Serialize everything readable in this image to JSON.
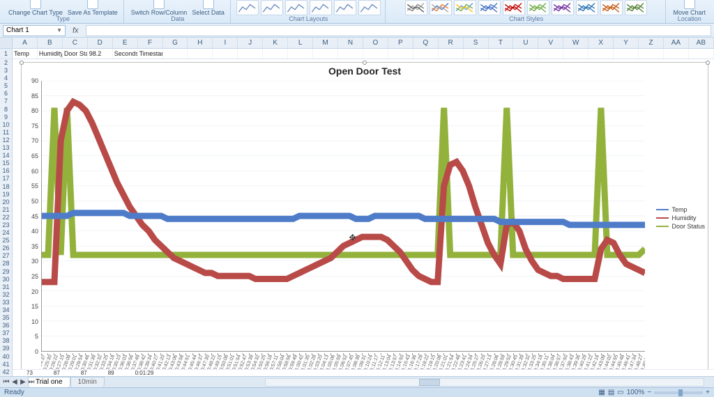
{
  "ribbon": {
    "groups": {
      "type": {
        "label": "Type",
        "btns": [
          "Change Chart Type",
          "Save As Template"
        ]
      },
      "data": {
        "label": "Data",
        "btns": [
          "Switch Row/Column",
          "Select Data"
        ]
      },
      "layouts": {
        "label": "Chart Layouts"
      },
      "styles": {
        "label": "Chart Styles"
      },
      "location": {
        "label": "Location",
        "btns": [
          "Move Chart"
        ]
      }
    },
    "style_colors": [
      [
        "#a5a5a5",
        "#7f7f7f",
        "#595959"
      ],
      [
        "#4472c4",
        "#ed7d31",
        "#a5a5a5"
      ],
      [
        "#5b9bd5",
        "#70ad47",
        "#ffc000"
      ],
      [
        "#4472c4",
        "#4472c4",
        "#4472c4"
      ],
      [
        "#c00000",
        "#c00000",
        "#c00000"
      ],
      [
        "#70ad47",
        "#70ad47",
        "#70ad47"
      ],
      [
        "#7030a0",
        "#7030a0",
        "#7030a0"
      ],
      [
        "#2e75b6",
        "#2e75b6",
        "#2e75b6"
      ],
      [
        "#c55a11",
        "#c55a11",
        "#c55a11"
      ],
      [
        "#548235",
        "#548235",
        "#548235"
      ]
    ],
    "layout_count": 6
  },
  "namebox": "Chart 1",
  "columns": [
    "A",
    "B",
    "C",
    "D",
    "E",
    "F",
    "G",
    "H",
    "I",
    "J",
    "K",
    "L",
    "M",
    "N",
    "O",
    "P",
    "Q",
    "R",
    "S",
    "T",
    "U",
    "V",
    "W",
    "X",
    "Y",
    "Z",
    "AA",
    "AB"
  ],
  "row1_cells": [
    "Temp",
    "Humidity",
    "Door Statu",
    "98.2",
    "Seconds",
    "Timestamp",
    "",
    "",
    "",
    "",
    "",
    "",
    "",
    "",
    "",
    "",
    "",
    "",
    "",
    "",
    "",
    "",
    "",
    "",
    "",
    "",
    "",
    ""
  ],
  "row_numbers_left": [
    "2",
    "3",
    "4",
    "5",
    "6",
    "7",
    "8",
    "9",
    "10",
    "11",
    "12",
    "13",
    "14",
    "15",
    "16",
    "17",
    "18",
    "19",
    "20",
    "21",
    "22",
    "23",
    "24",
    "25",
    "26",
    "27",
    "28",
    "29",
    "30",
    "31",
    "32",
    "33",
    "34",
    "35",
    "36",
    "37",
    "38",
    "39",
    "40",
    "41",
    "42"
  ],
  "partial_row": [
    "73",
    "87",
    "87",
    "89",
    "0:01:29"
  ],
  "chart": {
    "title": "Open Door Test",
    "ylim": [
      0,
      90
    ],
    "ytick_step": 5,
    "grid_color": "#d9e0e7",
    "background": "#ffffff",
    "legend": [
      {
        "label": "Temp",
        "color": "#4e7cc9"
      },
      {
        "label": "Humidity",
        "color": "#b84a48"
      },
      {
        "label": "Door Status",
        "color": "#93b23c"
      }
    ],
    "x_labels": [
      "0:24:37",
      "0:25:30",
      "0:26:22",
      "0:27:15",
      "0:28:08",
      "0:29:01",
      "0:29:54",
      "0:30:46",
      "0:31:39",
      "0:32:32",
      "0:33:25",
      "0:34:18",
      "0:35:10",
      "0:36:03",
      "0:36:56",
      "0:37:49",
      "0:38:42",
      "0:39:34",
      "0:40:27",
      "0:41:20",
      "0:42:13",
      "0:43:06",
      "0:43:58",
      "0:44:51",
      "0:45:44",
      "0:46:37",
      "0:47:30",
      "0:48:22",
      "0:49:15",
      "0:50:08",
      "0:51:01",
      "0:51:54",
      "0:52:47",
      "0:53:39",
      "0:54:32",
      "0:55:25",
      "0:56:18",
      "0:57:11",
      "0:58:04",
      "0:58:56",
      "0:59:49",
      "1:00:42",
      "1:01:35",
      "1:02:28",
      "1:03:20",
      "1:04:13",
      "1:05:06",
      "1:05:59",
      "1:06:52",
      "1:07:45",
      "1:08:38",
      "1:09:31",
      "1:10:24",
      "1:11:17",
      "1:12:11",
      "1:13:04",
      "1:13:57",
      "1:14:50",
      "1:15:43",
      "1:16:36",
      "1:17:29",
      "1:18:22",
      "1:19:15",
      "1:20:08",
      "1:21:01",
      "1:21:54",
      "1:22:48",
      "1:23:41",
      "1:24:34",
      "1:25:27",
      "1:26:20",
      "1:27:13",
      "1:28:06",
      "1:28:59",
      "1:29:52",
      "1:30:45",
      "1:31:39",
      "1:32:32",
      "1:33:25",
      "1:34:18",
      "1:35:11",
      "1:36:04",
      "1:36:57",
      "1:37:50",
      "1:38:43",
      "1:39:36",
      "1:40:29",
      "1:41:22",
      "1:42:16",
      "1:43:09",
      "1:44:02",
      "1:44:55",
      "1:45:48",
      "1:46:41",
      "1:47:34",
      "1:48:27",
      "1:49:20"
    ],
    "series": {
      "temp": {
        "color": "#4e7cc9",
        "width": 1.5,
        "values": [
          45,
          45,
          45,
          45,
          45,
          46,
          46,
          46,
          46,
          46,
          46,
          46,
          46,
          46,
          45,
          45,
          45,
          45,
          45,
          45,
          44,
          44,
          44,
          44,
          44,
          44,
          44,
          44,
          44,
          44,
          44,
          44,
          44,
          44,
          44,
          44,
          44,
          44,
          44,
          44,
          44,
          45,
          45,
          45,
          45,
          45,
          45,
          45,
          45,
          45,
          44,
          44,
          44,
          45,
          45,
          45,
          45,
          45,
          45,
          45,
          45,
          44,
          44,
          44,
          44,
          44,
          44,
          44,
          44,
          44,
          44,
          44,
          44,
          43,
          43,
          43,
          43,
          43,
          43,
          43,
          43,
          43,
          43,
          43,
          42,
          42,
          42,
          42,
          42,
          42,
          42,
          42,
          42,
          42,
          42,
          42,
          42
        ]
      },
      "humidity": {
        "color": "#b84a48",
        "width": 1.5,
        "values": [
          23,
          23,
          23,
          70,
          80,
          83,
          82,
          80,
          76,
          71,
          66,
          61,
          56,
          52,
          48,
          45,
          42,
          40,
          37,
          35,
          33,
          31,
          30,
          29,
          28,
          27,
          26,
          26,
          25,
          25,
          25,
          25,
          25,
          25,
          24,
          24,
          24,
          24,
          24,
          24,
          25,
          26,
          27,
          28,
          29,
          30,
          31,
          33,
          35,
          36,
          37,
          38,
          38,
          38,
          38,
          37,
          35,
          33,
          30,
          27,
          25,
          24,
          23,
          23,
          55,
          62,
          63,
          60,
          55,
          48,
          42,
          36,
          32,
          29,
          42,
          43,
          40,
          34,
          30,
          27,
          26,
          25,
          25,
          24,
          24,
          24,
          24,
          24,
          24,
          34,
          37,
          36,
          32,
          29,
          28,
          27,
          26
        ]
      },
      "door": {
        "color": "#93b23c",
        "width": 1.5,
        "values": [
          32,
          32,
          81,
          32,
          81,
          32,
          32,
          32,
          32,
          32,
          32,
          32,
          32,
          32,
          32,
          32,
          32,
          32,
          32,
          32,
          32,
          32,
          32,
          32,
          32,
          32,
          32,
          32,
          32,
          32,
          32,
          32,
          32,
          32,
          32,
          32,
          32,
          32,
          32,
          32,
          32,
          32,
          32,
          32,
          32,
          32,
          32,
          32,
          32,
          32,
          32,
          32,
          32,
          32,
          32,
          32,
          32,
          32,
          32,
          32,
          32,
          32,
          32,
          32,
          81,
          32,
          32,
          32,
          32,
          32,
          32,
          32,
          32,
          32,
          81,
          32,
          32,
          32,
          32,
          32,
          32,
          32,
          32,
          32,
          32,
          32,
          32,
          32,
          32,
          81,
          32,
          32,
          32,
          32,
          32,
          32,
          34
        ]
      }
    }
  },
  "tabs": {
    "active": "Trial one",
    "others": [
      "10min"
    ]
  },
  "status": {
    "left": "Ready",
    "zoom": "100%"
  }
}
